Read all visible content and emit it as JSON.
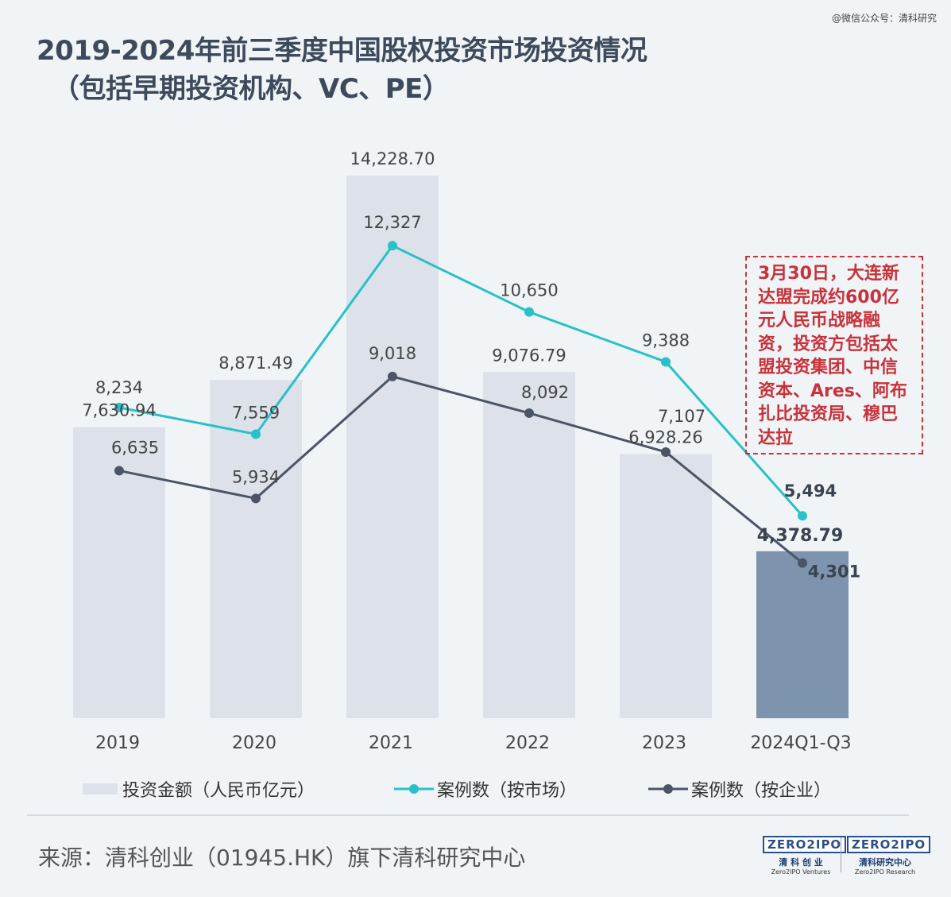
{
  "watermark": "@微信公众号：清科研究",
  "title": {
    "line1": "2019-2024年前三季度中国股权投资市场投资情况",
    "line2": "（包括早期投资机构、VC、PE）"
  },
  "annotation": "3月30日，大连新达盟完成约600亿元人民币战略融资，投资方包括太盟投资集团、中信资本、Ares、阿布扎比投资局、穆巴达拉",
  "chart_data": {
    "type": "bar",
    "categories": [
      "2019",
      "2020",
      "2021",
      "2022",
      "2023",
      "2024Q1-Q3"
    ],
    "series": [
      {
        "name": "投资金额（人民币亿元）",
        "kind": "bar",
        "values": [
          7630.94,
          8871.49,
          14228.7,
          9076.79,
          6928.26,
          4378.79
        ],
        "labels": [
          "7,630.94",
          "8,871.49",
          "14,228.70",
          "9,076.79",
          "6,928.26",
          "4,378.79"
        ],
        "color": "#dde1e9",
        "highlight_color": "#7e93ad"
      },
      {
        "name": "案例数（按市场）",
        "kind": "line",
        "values": [
          8234,
          7559,
          12327,
          10650,
          9388,
          5494
        ],
        "labels": [
          "8,234",
          "7,559",
          "12,327",
          "10,650",
          "9,388",
          "5,494"
        ],
        "color": "#27c1c9"
      },
      {
        "name": "案例数（按企业）",
        "kind": "line",
        "values": [
          6635,
          5934,
          9018,
          8092,
          7107,
          4301
        ],
        "labels": [
          "6,635",
          "5,934",
          "9,018",
          "8,092",
          "7,107",
          "4,301"
        ],
        "color": "#4b5566"
      }
    ],
    "ylim_bar": [
      0,
      15000
    ],
    "ylim_line": [
      0,
      15000
    ],
    "legend_position": "bottom"
  },
  "legend": {
    "bar": "投资金额（人民币亿元）",
    "line1": "案例数（按市场）",
    "line2": "案例数（按企业）"
  },
  "source": "来源：清科创业（01945.HK）旗下清科研究中心",
  "logos": {
    "left": {
      "mark": "ZERO2IPO",
      "cn": "清 科 创 业",
      "en": "Zero2IPO Ventures"
    },
    "right": {
      "mark": "ZERO2IPO",
      "cn": "清科研究中心",
      "en": "Zero2IPO Research"
    }
  }
}
